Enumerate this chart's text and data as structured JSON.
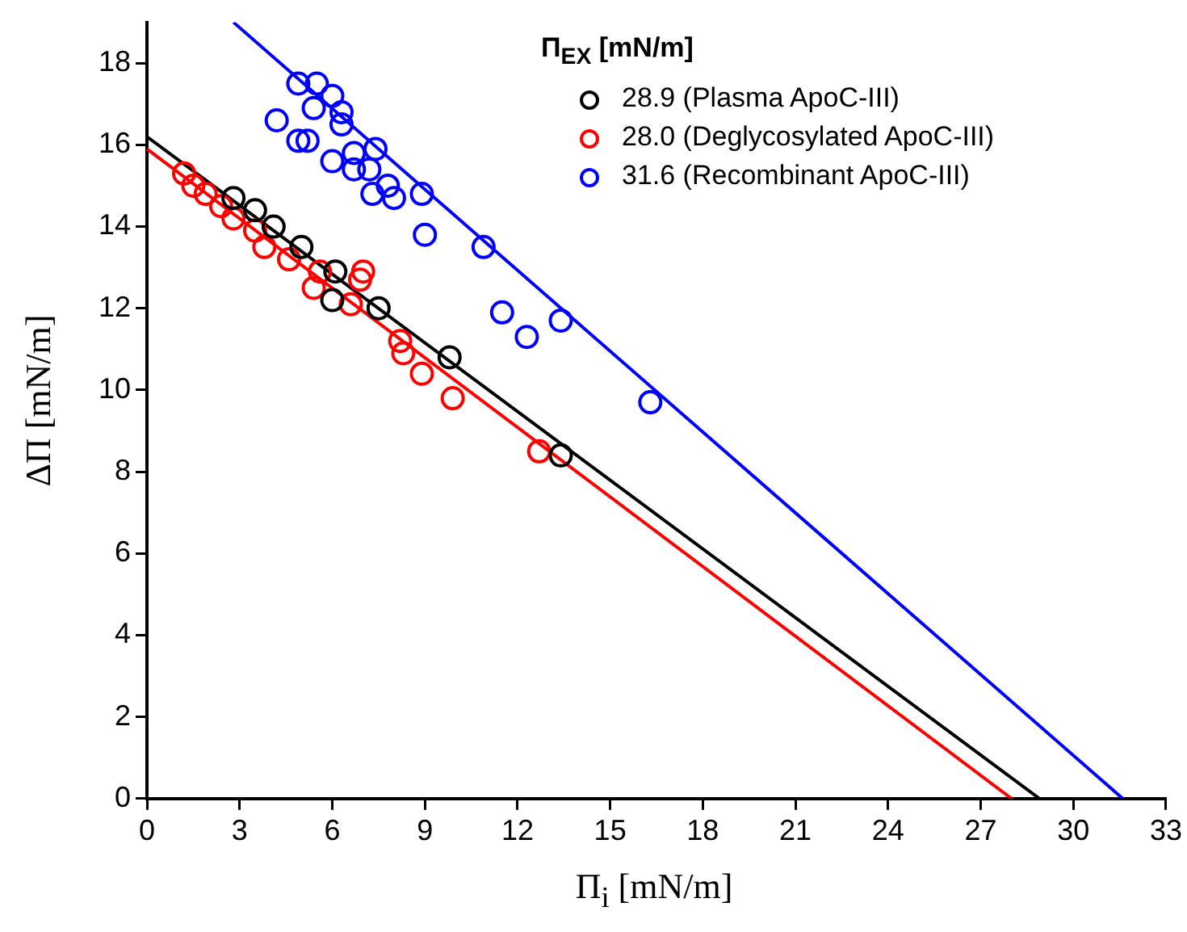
{
  "chart_data": {
    "type": "scatter",
    "xlabel": "Π$_{i}$ [mN/m]",
    "ylabel": "ΔΠ [mN/m]",
    "legend_title": "Π$_{EX}$ [mN/m]",
    "legend": "top right",
    "marker": "circle",
    "grid": false,
    "xlim": [
      0,
      33
    ],
    "xticks": [
      0,
      3,
      6,
      9,
      12,
      15,
      18,
      21,
      24,
      27,
      30,
      33
    ],
    "ylim": [
      0,
      19
    ],
    "yticks": [
      0,
      2,
      4,
      6,
      8,
      10,
      12,
      14,
      16,
      18
    ],
    "series": [
      {
        "name": "28.9 (Plasma ApoC-III)",
        "color": "#000000",
        "x": [
          2.8,
          3.5,
          4.1,
          5.0,
          6.1,
          6.0,
          7.5,
          9.8,
          13.4
        ],
        "values": [
          14.7,
          14.4,
          14.0,
          13.5,
          12.9,
          12.2,
          12.0,
          10.8,
          8.4
        ]
      },
      {
        "name": "28.0 (Deglycosylated ApoC-III)",
        "color": "#ff0000",
        "x": [
          1.2,
          1.5,
          1.9,
          2.4,
          2.8,
          3.5,
          3.8,
          4.6,
          5.4,
          5.6,
          6.6,
          6.9,
          7.0,
          8.2,
          8.3,
          8.9,
          9.9,
          12.7
        ],
        "values": [
          15.3,
          15.0,
          14.8,
          14.5,
          14.2,
          13.9,
          13.5,
          13.2,
          12.5,
          12.9,
          12.1,
          12.7,
          12.9,
          11.2,
          10.9,
          10.4,
          9.8,
          8.5
        ]
      },
      {
        "name": "31.6 (Recombinant ApoC-III)",
        "color": "#0000ff",
        "x": [
          4.9,
          5.5,
          6.0,
          5.4,
          6.3,
          6.3,
          4.2,
          4.9,
          5.2,
          6.0,
          6.7,
          7.4,
          6.7,
          7.2,
          7.3,
          7.8,
          8.0,
          8.9,
          9.0,
          10.9,
          11.5,
          12.3,
          13.4,
          16.3
        ],
        "values": [
          17.5,
          17.5,
          17.2,
          16.9,
          16.8,
          16.5,
          16.6,
          16.1,
          16.1,
          15.6,
          15.8,
          15.9,
          15.4,
          15.4,
          14.8,
          15.0,
          14.7,
          14.8,
          13.8,
          13.5,
          11.9,
          11.3,
          11.7,
          9.7
        ]
      },
      {
        "type": "line",
        "marker": "none",
        "color": "#000000",
        "x": [
          0,
          28.9
        ],
        "values": [
          16.2,
          0
        ]
      },
      {
        "type": "line",
        "marker": "none",
        "color": "#ff0000",
        "x": [
          0,
          28.0
        ],
        "values": [
          15.9,
          0
        ]
      },
      {
        "type": "line",
        "marker": "none",
        "color": "#0000ff",
        "x": [
          2.8,
          31.6
        ],
        "values": [
          19,
          0
        ]
      }
    ]
  }
}
